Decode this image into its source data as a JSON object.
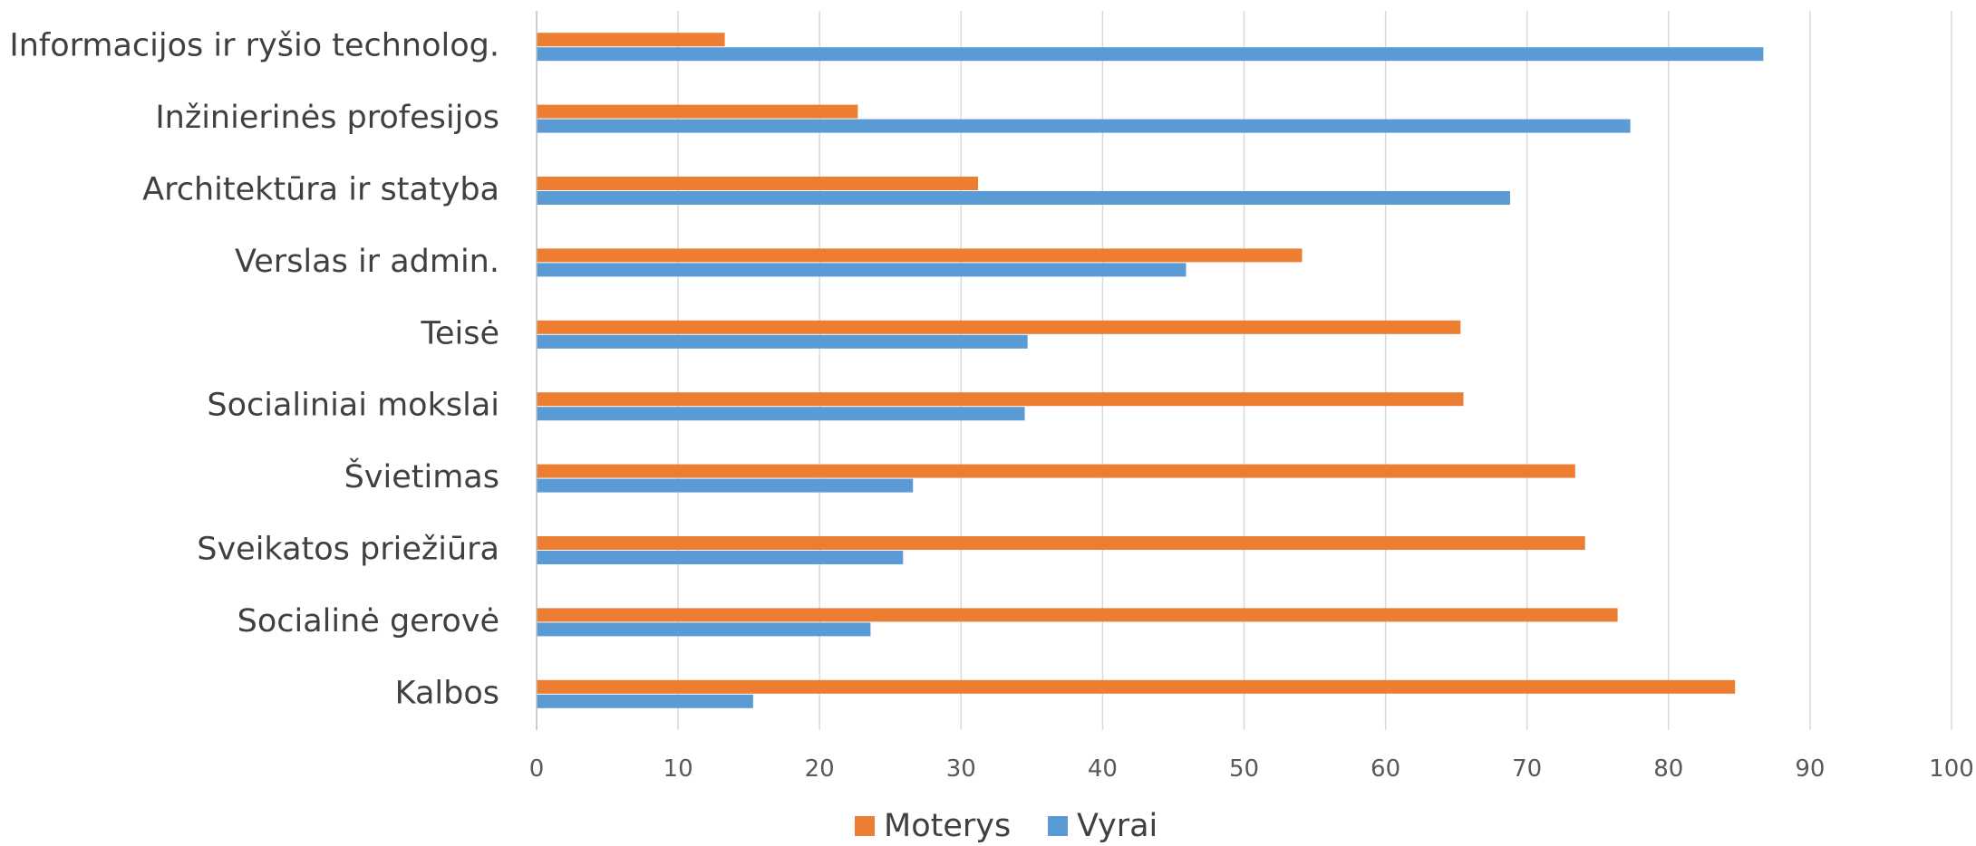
{
  "chart_data": {
    "type": "bar",
    "orientation": "horizontal",
    "categories": [
      "Informacijos ir ryšio technolog.",
      "Inžinierinės profesijos",
      "Architektūra ir statyba",
      "Verslas ir admin.",
      "Teisė",
      "Socialiniai mokslai",
      "Švietimas",
      "Sveikatos priežiūra",
      "Socialinė gerovė",
      "Kalbos"
    ],
    "series": [
      {
        "name": "Moterys",
        "color": "#ED7D31",
        "values": [
          13.3,
          22.7,
          31.2,
          54.1,
          65.3,
          65.5,
          73.4,
          74.1,
          76.4,
          84.7
        ]
      },
      {
        "name": "Vyrai",
        "color": "#5B9BD5",
        "values": [
          86.7,
          77.3,
          68.8,
          45.9,
          34.7,
          34.5,
          26.6,
          25.9,
          23.6,
          15.3
        ]
      }
    ],
    "xlim": [
      0,
      100
    ],
    "xticks": [
      0,
      10,
      20,
      30,
      40,
      50,
      60,
      70,
      80,
      90,
      100
    ],
    "grid": true,
    "legend_position": "bottom",
    "title": "",
    "xlabel": "",
    "ylabel": ""
  }
}
